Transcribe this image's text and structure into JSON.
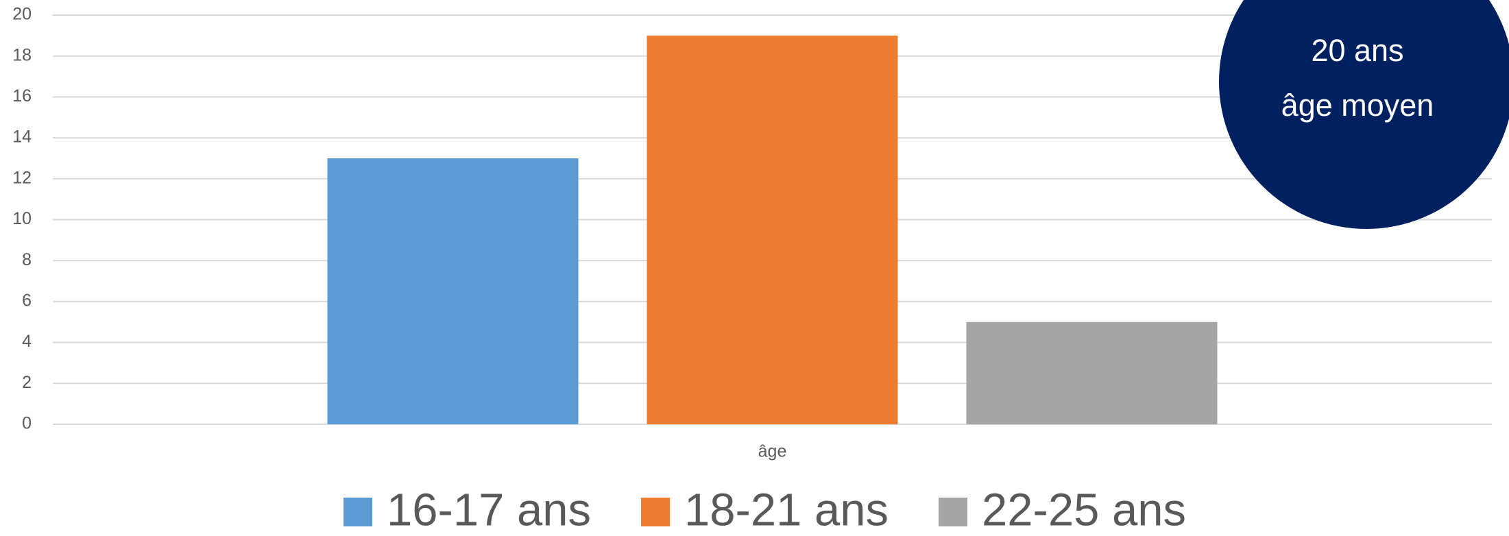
{
  "chart_data": {
    "type": "bar",
    "categories": [
      "âge"
    ],
    "series": [
      {
        "name": "16-17 ans",
        "color": "#5b9bd5",
        "values": [
          13
        ]
      },
      {
        "name": "18-21 ans",
        "color": "#ed7d31",
        "values": [
          19
        ]
      },
      {
        "name": "22-25 ans",
        "color": "#a5a5a5",
        "values": [
          5
        ]
      }
    ],
    "ylim": [
      0,
      20
    ],
    "yticks": [
      0,
      2,
      4,
      6,
      8,
      10,
      12,
      14,
      16,
      18,
      20
    ],
    "grid": true,
    "legend": "bottom",
    "annotations": [
      "20 ans",
      "âge moyen"
    ],
    "annotation_color": "#002060"
  }
}
